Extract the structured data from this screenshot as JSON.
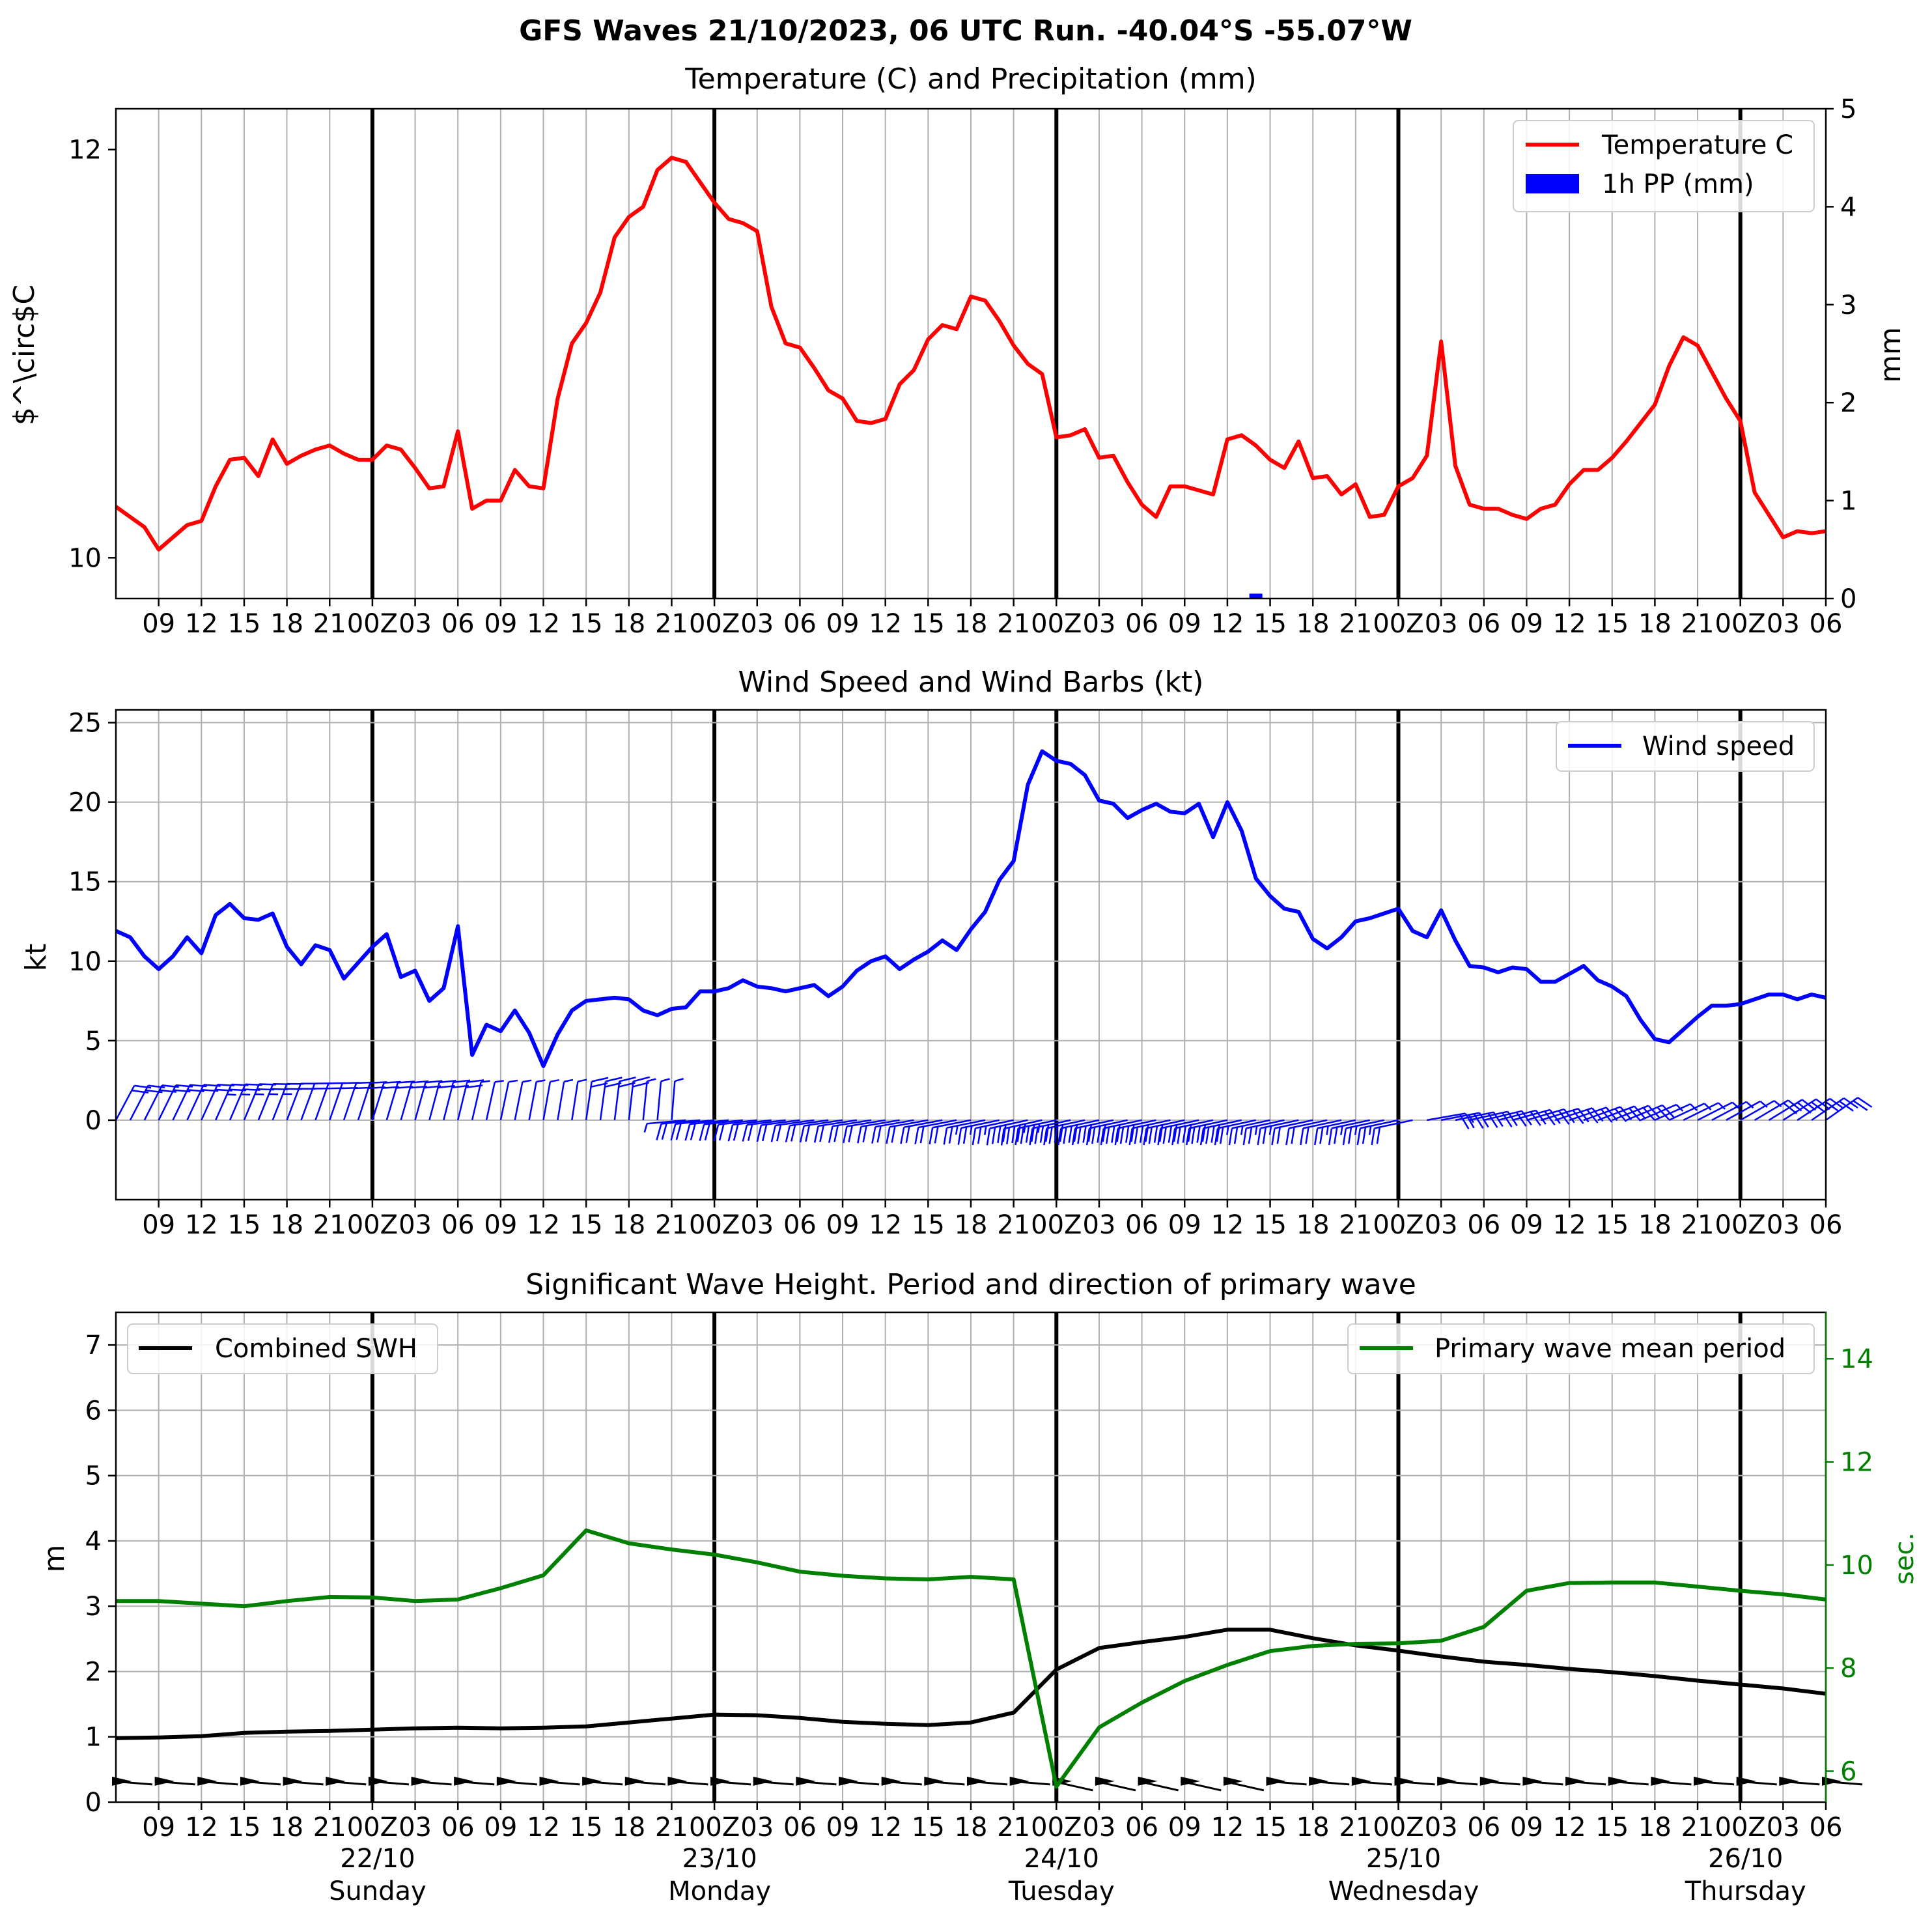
{
  "figure": {
    "title": "GFS Waves 21/10/2023, 06 UTC Run. -40.04°S -55.07°W"
  },
  "x_axis": {
    "tick_labels": [
      "09",
      "12",
      "15",
      "18",
      "21",
      "00Z",
      "03",
      "06",
      "09",
      "12",
      "15",
      "18",
      "21",
      "00Z",
      "03",
      "06",
      "09",
      "12",
      "15",
      "18",
      "21",
      "00Z",
      "03",
      "06",
      "09",
      "12",
      "15",
      "18",
      "21",
      "00Z",
      "03",
      "06",
      "09",
      "12",
      "15",
      "18",
      "21",
      "00Z",
      "03",
      "06"
    ],
    "day_labels": [
      {
        "date": "22/10",
        "weekday": "Sunday"
      },
      {
        "date": "23/10",
        "weekday": "Monday"
      },
      {
        "date": "24/10",
        "weekday": "Tuesday"
      },
      {
        "date": "25/10",
        "weekday": "Wednesday"
      },
      {
        "date": "26/10",
        "weekday": "Thursday"
      }
    ],
    "start": "21/10 06 UTC",
    "end": "26/10 06 UTC",
    "day_boundaries": [
      "22/10 00Z",
      "23/10 00Z",
      "24/10 00Z",
      "25/10 00Z",
      "26/10 00Z"
    ]
  },
  "chart_data": [
    {
      "type": "line",
      "title": "Temperature (C) and Precipitation (mm)",
      "ylabel": "$^\\circ$C",
      "ylabel_right": "mm",
      "ylim": [
        9.8,
        12.2
      ],
      "ylim_right": [
        0,
        5
      ],
      "yticks": [
        "10",
        "12"
      ],
      "yticks_right": [
        "0",
        "1",
        "2",
        "3",
        "4",
        "5"
      ],
      "grid": true,
      "legend": "top-right",
      "colors": {
        "temperature": "#ff0000",
        "precip": "#0000ff"
      },
      "x_hours_from_start": "0 to 120, step 1",
      "series": [
        {
          "name": "Temperature C",
          "color": "#ff0000",
          "values": [
            10.25,
            10.2,
            10.15,
            10.04,
            10.1,
            10.16,
            10.18,
            10.35,
            10.48,
            10.49,
            10.4,
            10.58,
            10.46,
            10.5,
            10.53,
            10.55,
            10.51,
            10.48,
            10.48,
            10.55,
            10.53,
            10.44,
            10.34,
            10.35,
            10.62,
            10.24,
            10.28,
            10.28,
            10.43,
            10.35,
            10.34,
            10.78,
            11.05,
            11.15,
            11.3,
            11.57,
            11.67,
            11.72,
            11.9,
            11.96,
            11.94,
            11.84,
            11.74,
            11.66,
            11.64,
            11.6,
            11.23,
            11.05,
            11.03,
            10.93,
            10.82,
            10.78,
            10.67,
            10.66,
            10.68,
            10.85,
            10.92,
            11.07,
            11.14,
            11.12,
            11.28,
            11.26,
            11.16,
            11.04,
            10.95,
            10.9,
            10.59,
            10.6,
            10.63,
            10.49,
            10.5,
            10.37,
            10.26,
            10.2,
            10.35,
            10.35,
            10.33,
            10.31,
            10.58,
            10.6,
            10.55,
            10.48,
            10.44,
            10.57,
            10.39,
            10.4,
            10.31,
            10.36,
            10.2,
            10.21,
            10.35,
            10.39,
            10.5,
            11.06,
            10.45,
            10.26,
            10.24,
            10.24,
            10.21,
            10.19,
            10.24,
            10.26,
            10.36,
            10.43,
            10.43,
            10.49,
            10.57,
            10.66,
            10.75,
            10.94,
            11.08,
            11.04,
            10.91,
            10.78,
            10.67,
            10.32,
            10.21,
            10.1,
            10.13,
            10.12,
            10.13
          ]
        },
        {
          "name": "1h PP (mm)",
          "color": "#0000ff",
          "kind": "bar",
          "axis": "right",
          "points": [
            {
              "x": 80,
              "value": 0.05
            }
          ]
        }
      ]
    },
    {
      "type": "line",
      "title": "Wind Speed and Wind Barbs (kt)",
      "ylabel": "kt",
      "ylim": [
        -5,
        25.8
      ],
      "yticks": [
        "0",
        "5",
        "10",
        "15",
        "20",
        "25"
      ],
      "grid": true,
      "legend": "top-right",
      "x_hours_from_start": "0 to 120, step 1",
      "series": [
        {
          "name": "Wind speed",
          "color": "#0000ff",
          "values": [
            11.9,
            11.5,
            10.3,
            9.5,
            10.3,
            11.5,
            10.5,
            12.9,
            13.6,
            12.7,
            12.6,
            13.0,
            10.9,
            9.8,
            11.0,
            10.7,
            8.9,
            9.9,
            10.9,
            11.7,
            9.0,
            9.4,
            7.5,
            8.3,
            12.2,
            4.1,
            6.0,
            5.6,
            6.9,
            5.5,
            3.4,
            5.4,
            6.9,
            7.5,
            7.6,
            7.7,
            7.6,
            6.9,
            6.6,
            7.0,
            7.1,
            8.1,
            8.1,
            8.3,
            8.8,
            8.4,
            8.3,
            8.1,
            8.3,
            8.5,
            7.8,
            8.4,
            9.4,
            10.0,
            10.3,
            9.5,
            10.1,
            10.6,
            11.3,
            10.7,
            12.0,
            13.1,
            15.1,
            16.3,
            21.1,
            23.2,
            22.6,
            22.4,
            21.7,
            20.1,
            19.9,
            19.0,
            19.5,
            19.9,
            19.4,
            19.3,
            19.9,
            17.8,
            20.0,
            18.2,
            15.2,
            14.1,
            13.3,
            13.1,
            11.4,
            10.8,
            11.5,
            12.5,
            12.7,
            13.0,
            13.3,
            11.9,
            11.5,
            13.2,
            11.3,
            9.7,
            9.6,
            9.3,
            9.6,
            9.5,
            8.7,
            8.7,
            9.2,
            9.7,
            8.8,
            8.4,
            7.8,
            6.3,
            5.1,
            4.9,
            5.7,
            6.5,
            7.2,
            7.2,
            7.3,
            7.6,
            7.9,
            7.9,
            7.6,
            7.9,
            7.7
          ]
        }
      ],
      "barbs": {
        "color": "#0000ff",
        "baseline": 0,
        "every_hours": 1
      }
    },
    {
      "type": "line",
      "title": "Significant Wave Height. Period and direction of primary wave",
      "ylabel": "m",
      "ylabel_right": "sec.",
      "ylim": [
        0,
        7.5
      ],
      "ylim_right": [
        5.4,
        14.9
      ],
      "yticks": [
        "0",
        "1",
        "2",
        "3",
        "4",
        "5",
        "6",
        "7"
      ],
      "yticks_right": [
        "6",
        "8",
        "10",
        "12",
        "14"
      ],
      "grid": true,
      "legend": [
        "top-left",
        "top-right"
      ],
      "x_hours_from_start": "0 to 120, step 3",
      "series": [
        {
          "name": "Combined SWH",
          "color": "#000000",
          "values": [
            0.98,
            0.99,
            1.01,
            1.06,
            1.08,
            1.09,
            1.11,
            1.13,
            1.14,
            1.13,
            1.14,
            1.16,
            1.22,
            1.28,
            1.34,
            1.33,
            1.29,
            1.23,
            1.2,
            1.18,
            1.22,
            1.37,
            2.03,
            2.36,
            2.45,
            2.53,
            2.64,
            2.64,
            2.51,
            2.4,
            2.32,
            2.23,
            2.15,
            2.1,
            2.04,
            1.99,
            1.93,
            1.86,
            1.8,
            1.74,
            1.66
          ]
        },
        {
          "name": "Primary wave mean period",
          "color": "#008000",
          "axis": "right",
          "values": [
            9.3,
            9.3,
            9.25,
            9.2,
            9.3,
            9.38,
            9.37,
            9.3,
            9.33,
            9.55,
            9.8,
            10.67,
            10.42,
            10.3,
            10.2,
            10.05,
            9.87,
            9.79,
            9.74,
            9.72,
            9.77,
            9.72,
            5.7,
            6.85,
            7.33,
            7.75,
            8.06,
            8.33,
            8.43,
            8.47,
            8.48,
            8.53,
            8.8,
            9.5,
            9.65,
            9.66,
            9.66,
            9.58,
            9.5,
            9.43,
            9.33
          ]
        }
      ],
      "direction_arrows": {
        "color": "#000000",
        "baseline": 0.3,
        "every_hours": 3
      }
    }
  ]
}
